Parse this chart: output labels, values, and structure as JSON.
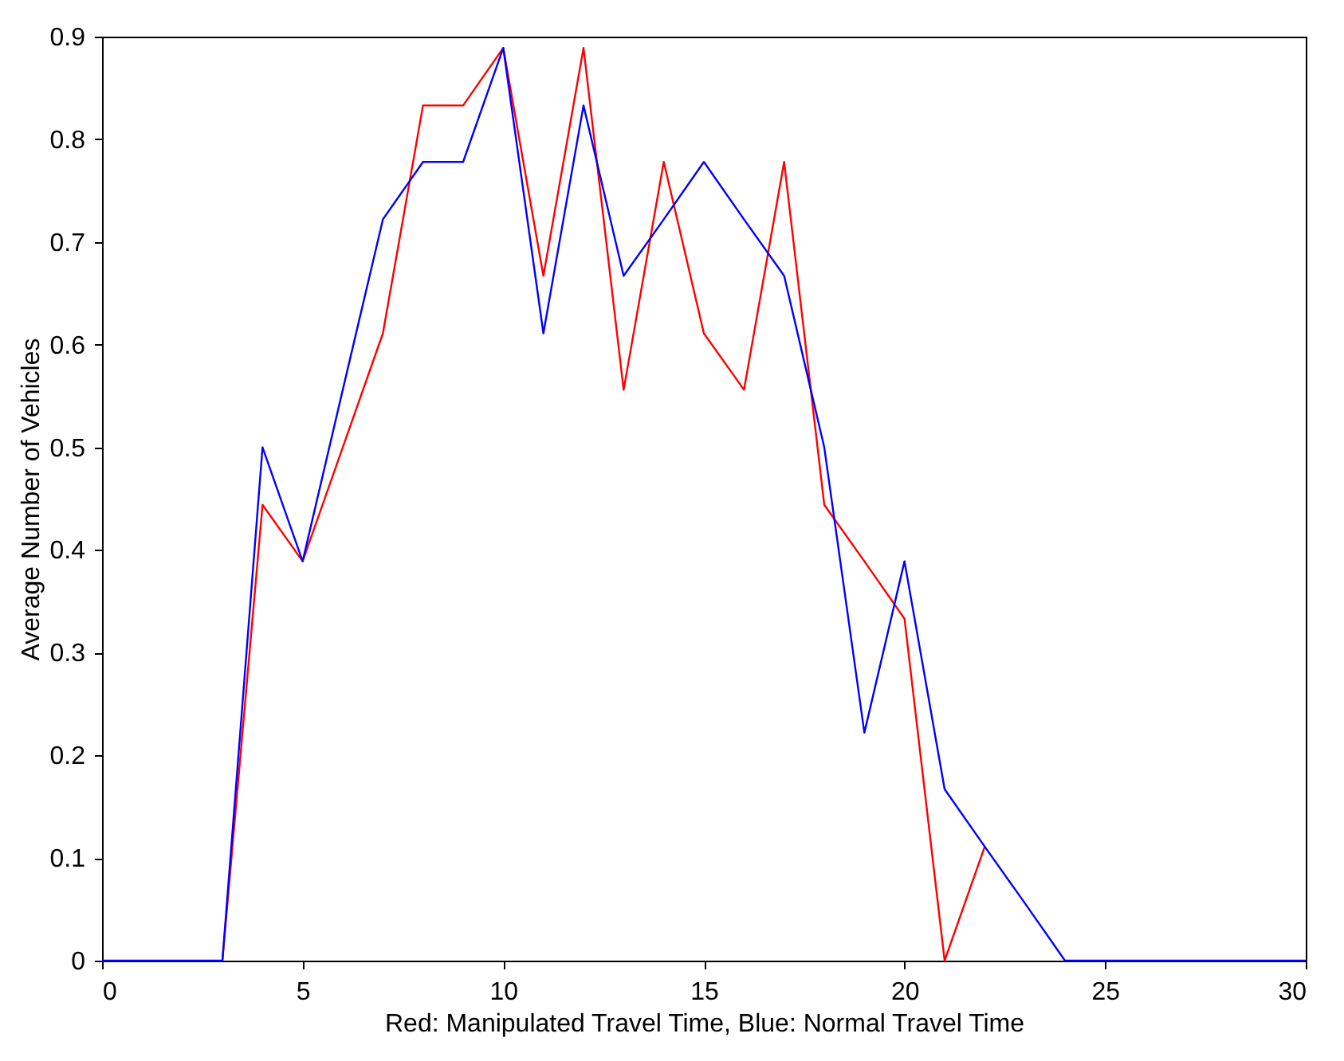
{
  "chart_data": {
    "type": "line",
    "xlabel": "Red: Manipulated Travel Time, Blue: Normal Travel Time",
    "ylabel": "Average Number of Vehicles",
    "series": [
      {
        "color": "#ff0000",
        "x": [
          3,
          4,
          5,
          6,
          7,
          8,
          9,
          10,
          11,
          12,
          13,
          14,
          15,
          16,
          17,
          18,
          19,
          20,
          21,
          22
        ],
        "values": [
          0,
          0.444,
          0.389,
          0.5,
          0.611,
          0.833,
          0.833,
          0.889,
          0.667,
          0.889,
          0.556,
          0.778,
          0.611,
          0.556,
          0.778,
          0.444,
          0.389,
          0.333,
          0,
          0.111
        ]
      },
      {
        "color": "#0000ff",
        "x": [
          0,
          1,
          2,
          3,
          4,
          5,
          6,
          7,
          8,
          9,
          10,
          11,
          12,
          13,
          14,
          15,
          16,
          17,
          18,
          19,
          20,
          21,
          22,
          23,
          24,
          25,
          26,
          27,
          28,
          29,
          30
        ],
        "values": [
          0,
          0,
          0,
          0,
          0.5,
          0.389,
          0.556,
          0.722,
          0.778,
          0.778,
          0.889,
          0.611,
          0.833,
          0.667,
          0.722,
          0.778,
          0.722,
          0.667,
          0.5,
          0.222,
          0.389,
          0.167,
          0.111,
          0.056,
          0,
          0,
          0,
          0,
          0,
          0,
          0
        ]
      }
    ],
    "xlim": [
      0,
      30
    ],
    "xticks": [
      0,
      5,
      10,
      15,
      20,
      25,
      30
    ],
    "ylim": [
      0,
      0.9
    ],
    "yticks": [
      0,
      0.1,
      0.2,
      0.3,
      0.4,
      0.5,
      0.6,
      0.7,
      0.8,
      0.9
    ],
    "grid": false,
    "marker": "none",
    "line_style": "solid"
  }
}
